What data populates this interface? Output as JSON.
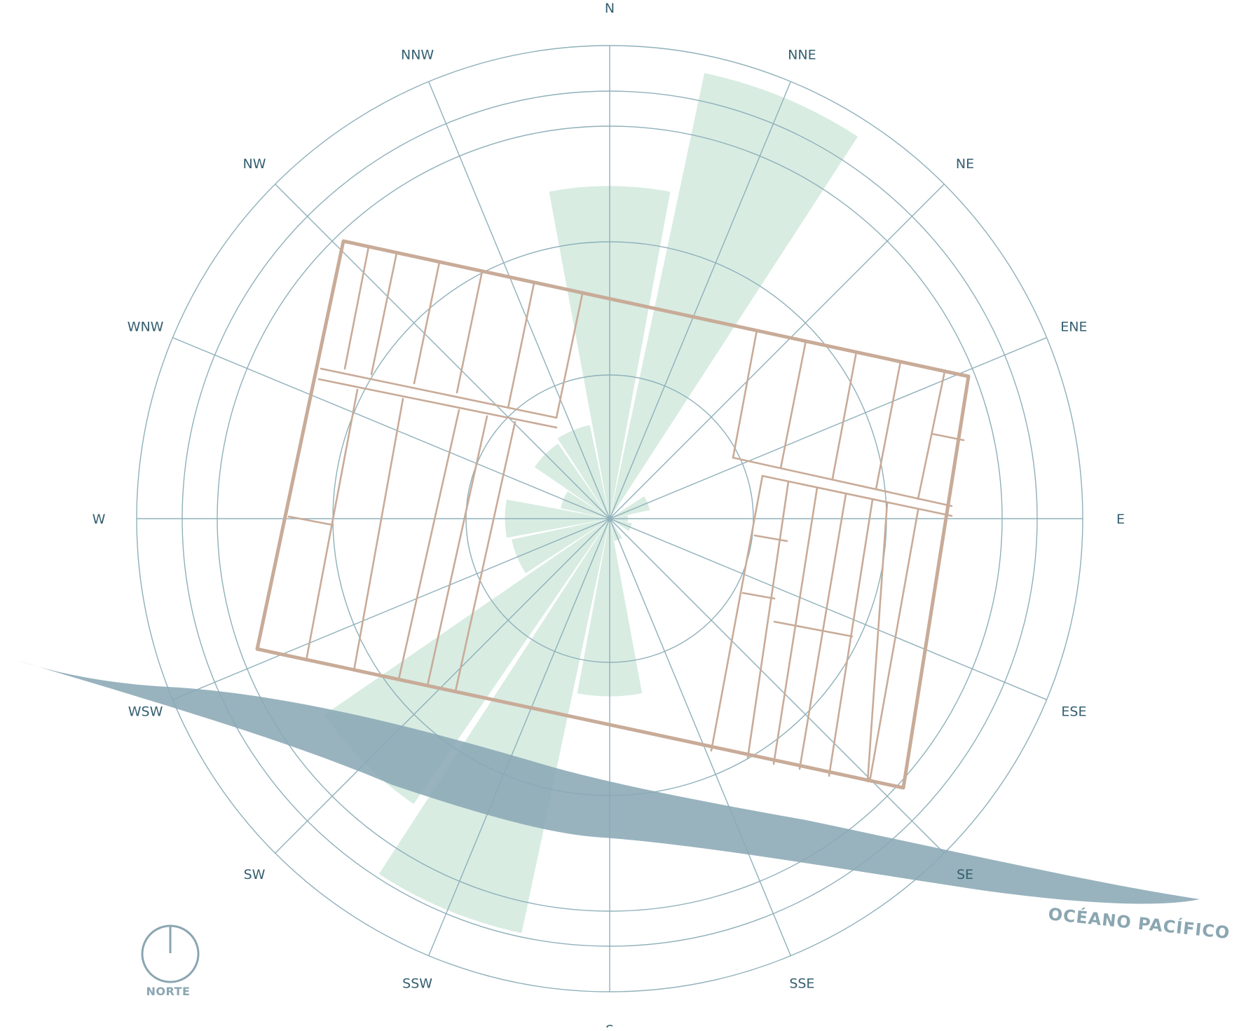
{
  "compass": {
    "directions": [
      "N",
      "NNE",
      "NE",
      "ENE",
      "E",
      "ESE",
      "SE",
      "SSE",
      "S",
      "SSW",
      "SW",
      "WSW",
      "W",
      "WNW",
      "NW",
      "NNW"
    ],
    "rings": 5
  },
  "wind_rose": {
    "petals": [
      {
        "direction": "N",
        "relative_length": 0.73
      },
      {
        "direction": "NNE",
        "relative_length": 1.0
      },
      {
        "direction": "NE",
        "relative_length": 0.0
      },
      {
        "direction": "ENE",
        "relative_length": 0.09
      },
      {
        "direction": "E",
        "relative_length": 0.04
      },
      {
        "direction": "ESE",
        "relative_length": 0.05
      },
      {
        "direction": "SE",
        "relative_length": 0.0
      },
      {
        "direction": "SSE",
        "relative_length": 0.05
      },
      {
        "direction": "S",
        "relative_length": 0.39
      },
      {
        "direction": "SSW",
        "relative_length": 0.93
      },
      {
        "direction": "SW",
        "relative_length": 0.76
      },
      {
        "direction": "WSW",
        "relative_length": 0.22
      },
      {
        "direction": "W",
        "relative_length": 0.23
      },
      {
        "direction": "WNW",
        "relative_length": 0.11
      },
      {
        "direction": "NW",
        "relative_length": 0.2
      },
      {
        "direction": "NNW",
        "relative_length": 0.21
      }
    ]
  },
  "labels": {
    "ocean": "OCÉANO PACÍFICO",
    "north_symbol": "NORTE"
  },
  "colors": {
    "grid": "#8fb0ba",
    "wind_rose": "#d5eadf",
    "ocean": "#8aa8b5",
    "building": "#c8ab98",
    "text": "#355f70"
  }
}
